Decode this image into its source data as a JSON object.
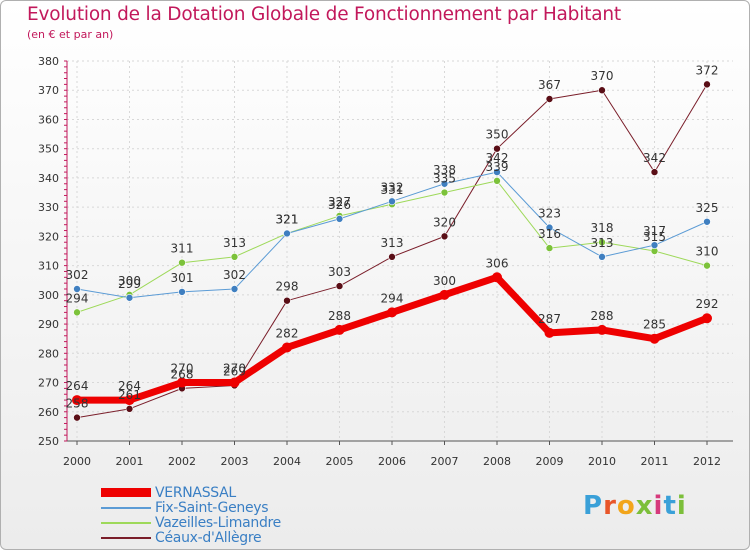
{
  "title": "Evolution de la Dotation Globale de Fonctionnement par Habitant",
  "subtitle": "(en € et par an)",
  "brand": {
    "letters": [
      "P",
      "r",
      "o",
      "x",
      "i",
      "t",
      "i"
    ],
    "colors": [
      "#3aa0d8",
      "#e8562a",
      "#f2a51a",
      "#7cbf3a",
      "#d63a7c",
      "#3aa0d8",
      "#7cbf3a"
    ]
  },
  "chart_data": {
    "type": "line",
    "title": "Evolution de la Dotation Globale de Fonctionnement par Habitant",
    "subtitle": "(en € et par an)",
    "xlabel": "",
    "ylabel": "",
    "ylim": [
      250,
      380
    ],
    "yticks": [
      250,
      260,
      270,
      280,
      290,
      300,
      310,
      320,
      330,
      340,
      350,
      360,
      370,
      380
    ],
    "categories": [
      "2000",
      "2001",
      "2002",
      "2003",
      "2004",
      "2005",
      "2006",
      "2007",
      "2008",
      "2009",
      "2010",
      "2011",
      "2012"
    ],
    "grid": true,
    "legend_position": "bottom-left",
    "series": [
      {
        "name": "Céaux-d'Allègre",
        "color": "#7a1e2a",
        "marker": "#5a0e16",
        "width": 1,
        "values": [
          258,
          261,
          268,
          269,
          298,
          303,
          313,
          320,
          350,
          367,
          370,
          342,
          372
        ]
      },
      {
        "name": "Vazeilles-Limandre",
        "color": "#9ed95a",
        "marker": "#7cc23a",
        "width": 1,
        "values": [
          294,
          300,
          311,
          313,
          321,
          327,
          331,
          335,
          339,
          316,
          318,
          315,
          310
        ]
      },
      {
        "name": "Fix-Saint-Geneys",
        "color": "#5b9bd5",
        "marker": "#3f7fc0",
        "width": 1,
        "values": [
          302,
          299,
          301,
          302,
          321,
          326,
          332,
          338,
          342,
          323,
          313,
          317,
          325
        ]
      },
      {
        "name": "VERNASSAL",
        "color": "#ee0000",
        "marker": "#ee0000",
        "width": 7,
        "values": [
          264,
          264,
          270,
          270,
          282,
          288,
          294,
          300,
          306,
          287,
          288,
          285,
          292
        ]
      }
    ],
    "legend_order": [
      "VERNASSAL",
      "Fix-Saint-Geneys",
      "Vazeilles-Limandre",
      "Céaux-d'Allègre"
    ]
  }
}
